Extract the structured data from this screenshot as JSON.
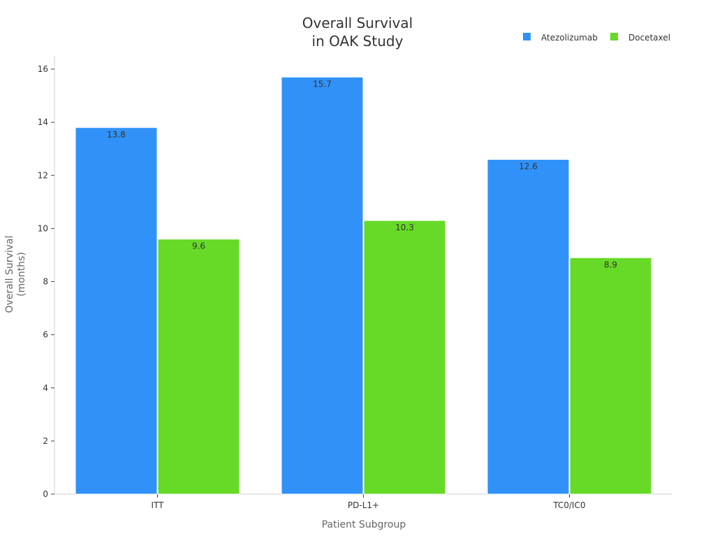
{
  "chart_data": {
    "type": "bar",
    "title_lines": [
      "Overall Survival",
      "in OAK Study"
    ],
    "xlabel": "Patient Subgroup",
    "ylabel_lines": [
      "Overall Survival",
      "(months)"
    ],
    "categories": [
      "ITT",
      "PD-L1+",
      "TC0/IC0"
    ],
    "series": [
      {
        "name": "Atezolizumab",
        "color": "#3092F9",
        "values": [
          13.8,
          15.7,
          12.6
        ]
      },
      {
        "name": "Docetaxel",
        "color": "#66DA26",
        "values": [
          9.6,
          10.3,
          8.9
        ]
      }
    ],
    "ylim": [
      0,
      16.5
    ],
    "yticks": [
      0,
      2,
      4,
      6,
      8,
      10,
      12,
      14,
      16
    ],
    "legend_position": "top-right",
    "grid": false
  }
}
